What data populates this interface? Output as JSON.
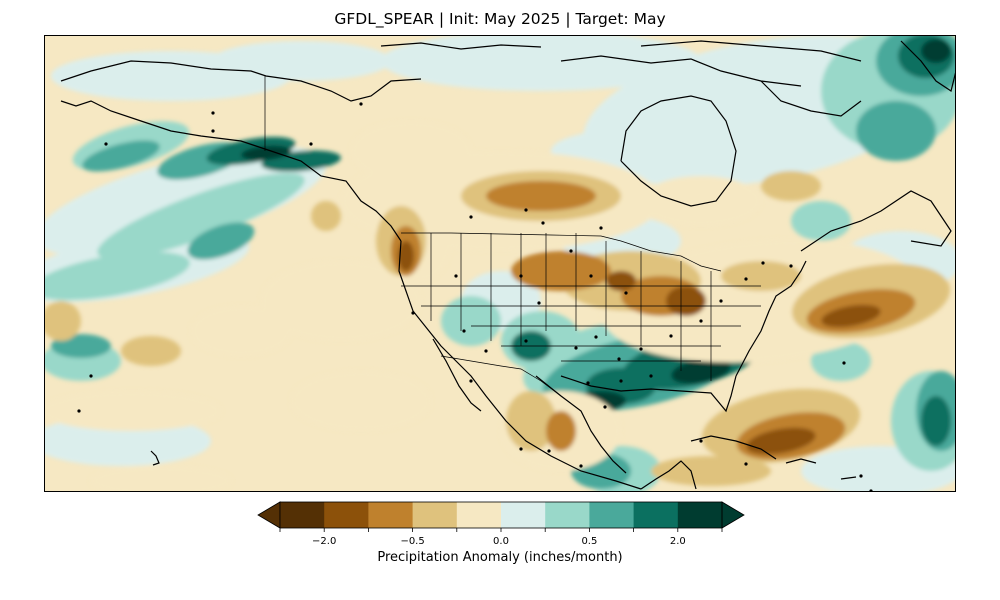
{
  "title": "GFDL_SPEAR | Init: May 2025 | Target: May",
  "colorbar": {
    "label": "Precipitation Anomaly (inches/month)",
    "ticks": [
      "−2.0",
      "−0.5",
      "0.0",
      "0.5",
      "2.0"
    ],
    "levels": [
      -2.5,
      -2.0,
      -1.0,
      -0.5,
      -0.25,
      0.0,
      0.25,
      0.5,
      1.0,
      2.0,
      2.5
    ],
    "colors": [
      "#543005",
      "#8c510a",
      "#bf812d",
      "#dfc27d",
      "#f6e8c3",
      "#dbeeec",
      "#99d8c9",
      "#4aa99b",
      "#0b7060",
      "#003c30"
    ],
    "extend": "both"
  },
  "map": {
    "model": "GFDL_SPEAR",
    "init": "May 2025",
    "target": "May",
    "region": "North America",
    "ocean_background_color": "#f6e8c3",
    "anomaly_regions": {
      "wet": [
        "Alaska coast",
        "Southern Plains",
        "Gulf Coast",
        "Southeast US",
        "Mid-Atlantic",
        "Greenland coast",
        "Central Mexico"
      ],
      "dry": [
        "Pacific Northwest",
        "Northern Plains",
        "Ohio Valley",
        "Western Atlantic",
        "Caribbean",
        "Baja California",
        "Southern Mexico"
      ]
    }
  }
}
